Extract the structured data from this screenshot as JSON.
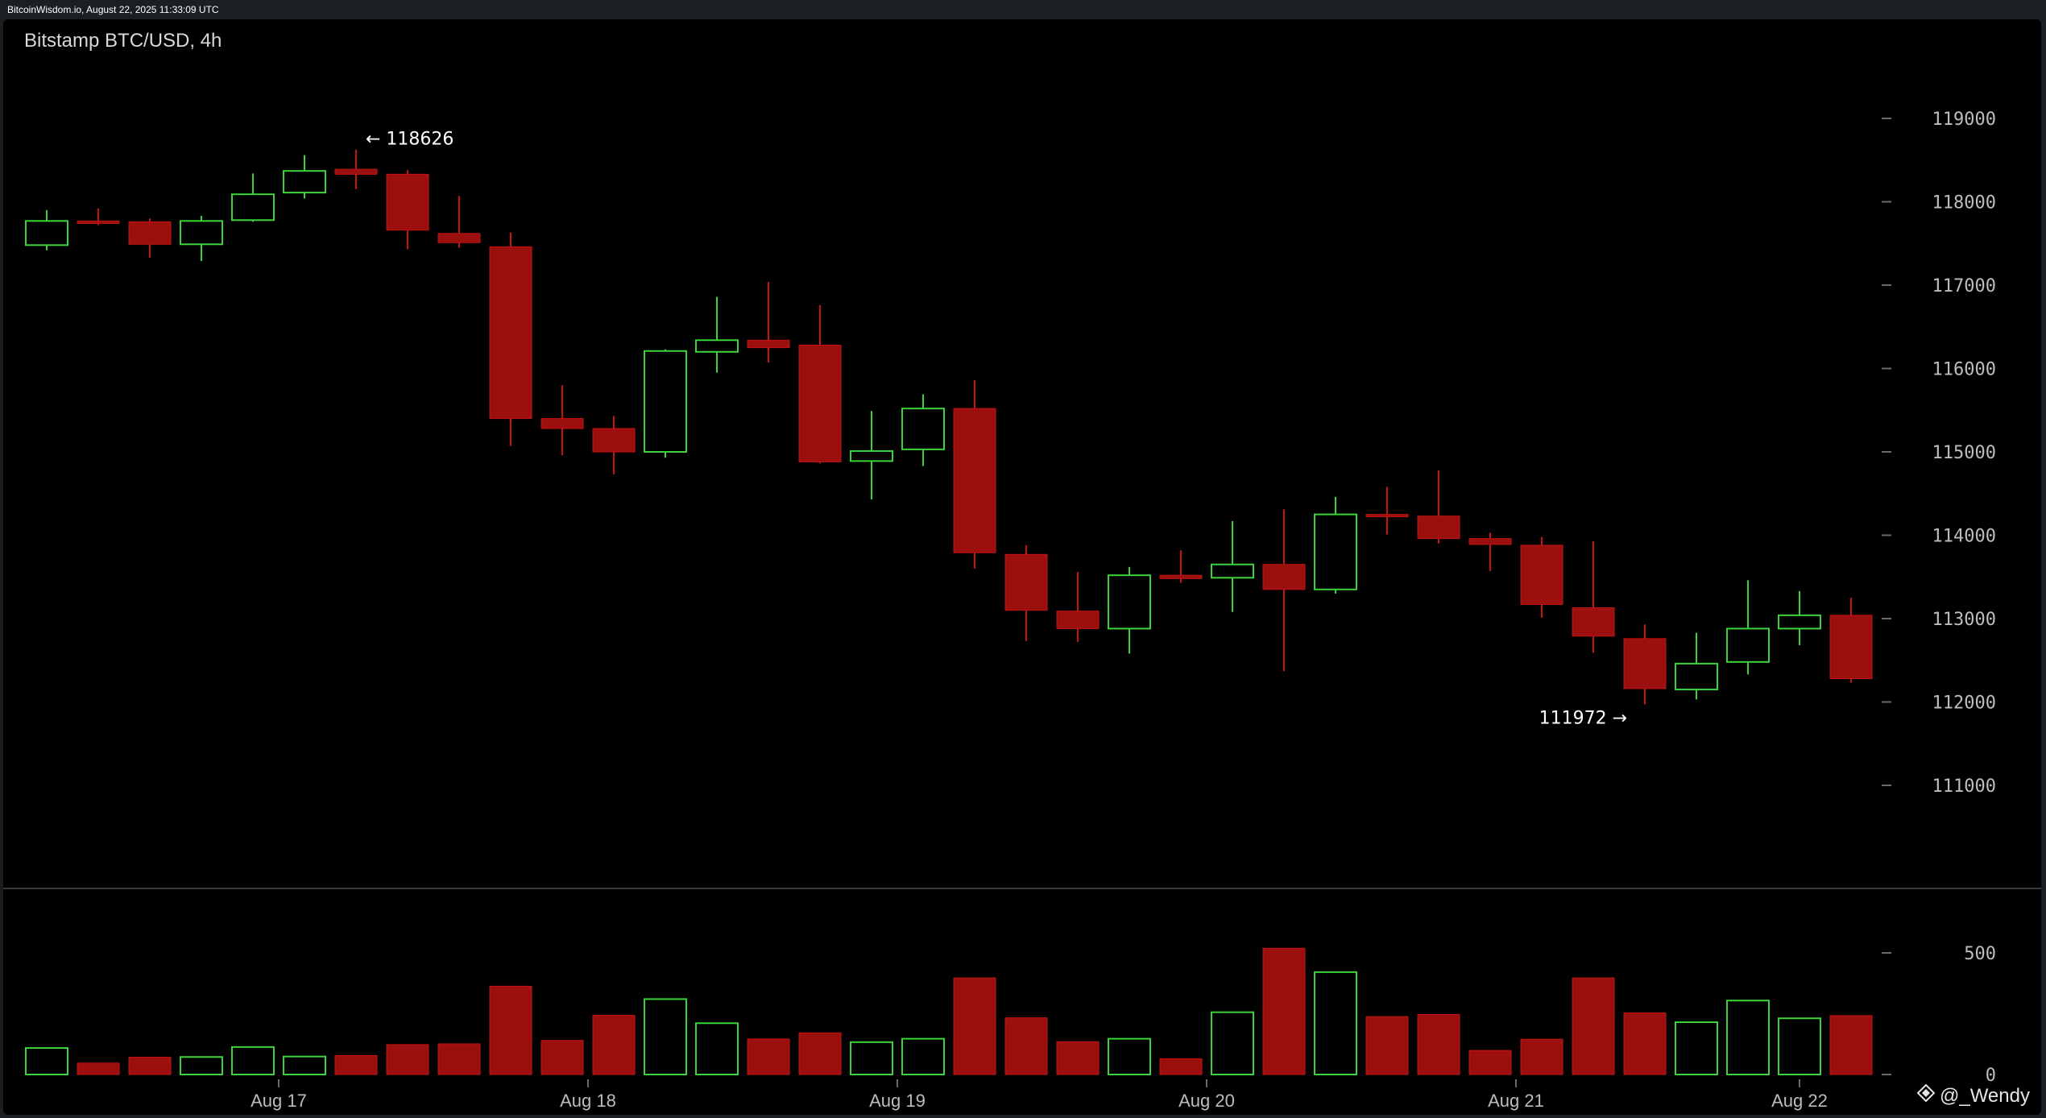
{
  "header": {
    "text": "BitcoinWisdom.io, August 22, 2025 11:33:09 UTC"
  },
  "watermark": {
    "text": "@_Wendy",
    "icon": "diamond-logo-icon"
  },
  "colors": {
    "background": "#000000",
    "up": "#3bd43b",
    "down": "#9b0f0f",
    "axis_text": "#bdbdbd",
    "divider": "#3a3a3a"
  },
  "chart_data": {
    "type": "candlestick",
    "title": "Bitstamp BTC/USD, 4h",
    "interval": "4h",
    "x_tick_labels": [
      "Aug 17",
      "Aug 18",
      "Aug 19",
      "Aug 20",
      "Aug 21",
      "Aug 22"
    ],
    "x_tick_candle_index": [
      4.5,
      10.5,
      16.5,
      22.5,
      28.5,
      34
    ],
    "price_axis": {
      "ticks": [
        111000,
        112000,
        113000,
        114000,
        115000,
        116000,
        117000,
        118000,
        119000
      ],
      "tick_labels": [
        "111000",
        "112000",
        "113000",
        "114000",
        "115000",
        "116000",
        "117000",
        "118000",
        "119000"
      ],
      "range": [
        109700,
        120500
      ]
    },
    "volume_axis": {
      "ticks": [
        0,
        500
      ],
      "tick_labels": [
        "0",
        "500"
      ],
      "range": [
        0,
        720
      ]
    },
    "candles": [
      {
        "o": 117480,
        "h": 117900,
        "l": 117420,
        "c": 117770
      },
      {
        "o": 117770,
        "h": 117920,
        "l": 117720,
        "c": 117740
      },
      {
        "o": 117760,
        "h": 117800,
        "l": 117330,
        "c": 117490
      },
      {
        "o": 117490,
        "h": 117830,
        "l": 117290,
        "c": 117770
      },
      {
        "o": 117780,
        "h": 118340,
        "l": 117760,
        "c": 118090
      },
      {
        "o": 118110,
        "h": 118560,
        "l": 118040,
        "c": 118370
      },
      {
        "o": 118390,
        "h": 118626,
        "l": 118150,
        "c": 118330
      },
      {
        "o": 118330,
        "h": 118380,
        "l": 117430,
        "c": 117660
      },
      {
        "o": 117620,
        "h": 118070,
        "l": 117450,
        "c": 117510
      },
      {
        "o": 117460,
        "h": 117630,
        "l": 115070,
        "c": 115400
      },
      {
        "o": 115400,
        "h": 115800,
        "l": 114960,
        "c": 115280
      },
      {
        "o": 115280,
        "h": 115430,
        "l": 114730,
        "c": 115000
      },
      {
        "o": 115000,
        "h": 116230,
        "l": 114930,
        "c": 116210
      },
      {
        "o": 116200,
        "h": 116860,
        "l": 115950,
        "c": 116340
      },
      {
        "o": 116340,
        "h": 117040,
        "l": 116070,
        "c": 116250
      },
      {
        "o": 116280,
        "h": 116760,
        "l": 114860,
        "c": 114880
      },
      {
        "o": 114890,
        "h": 115490,
        "l": 114430,
        "c": 115010
      },
      {
        "o": 115030,
        "h": 115690,
        "l": 114830,
        "c": 115520
      },
      {
        "o": 115520,
        "h": 115860,
        "l": 113600,
        "c": 113790
      },
      {
        "o": 113770,
        "h": 113880,
        "l": 112730,
        "c": 113100
      },
      {
        "o": 113090,
        "h": 113560,
        "l": 112720,
        "c": 112880
      },
      {
        "o": 112880,
        "h": 113620,
        "l": 112580,
        "c": 113520
      },
      {
        "o": 113520,
        "h": 113820,
        "l": 113430,
        "c": 113480
      },
      {
        "o": 113490,
        "h": 114170,
        "l": 113080,
        "c": 113650
      },
      {
        "o": 113650,
        "h": 114310,
        "l": 112370,
        "c": 113350
      },
      {
        "o": 113350,
        "h": 114460,
        "l": 113300,
        "c": 114250
      },
      {
        "o": 114250,
        "h": 114580,
        "l": 114010,
        "c": 114230
      },
      {
        "o": 114230,
        "h": 114780,
        "l": 113900,
        "c": 113960
      },
      {
        "o": 113960,
        "h": 114030,
        "l": 113570,
        "c": 113890
      },
      {
        "o": 113880,
        "h": 113980,
        "l": 113010,
        "c": 113170
      },
      {
        "o": 113130,
        "h": 113930,
        "l": 112590,
        "c": 112790
      },
      {
        "o": 112760,
        "h": 112930,
        "l": 111972,
        "c": 112160
      },
      {
        "o": 112150,
        "h": 112830,
        "l": 112030,
        "c": 112460
      },
      {
        "o": 112480,
        "h": 113460,
        "l": 112330,
        "c": 112880
      },
      {
        "o": 112880,
        "h": 113330,
        "l": 112680,
        "c": 113040
      },
      {
        "o": 113040,
        "h": 113250,
        "l": 112230,
        "c": 112280
      }
    ],
    "volumes": [
      109,
      47,
      71,
      72,
      113,
      74,
      78,
      123,
      126,
      363,
      140,
      243,
      310,
      211,
      146,
      171,
      133,
      147,
      397,
      233,
      135,
      147,
      65,
      256,
      519,
      421,
      238,
      247,
      99,
      145,
      397,
      253,
      215,
      304,
      231,
      242
    ],
    "annotations": [
      {
        "text": "← 118626",
        "candle_index": 6,
        "price": 118626,
        "side": "right"
      },
      {
        "text": "111972 →",
        "candle_index": 31,
        "price": 111972,
        "side": "left"
      }
    ]
  }
}
